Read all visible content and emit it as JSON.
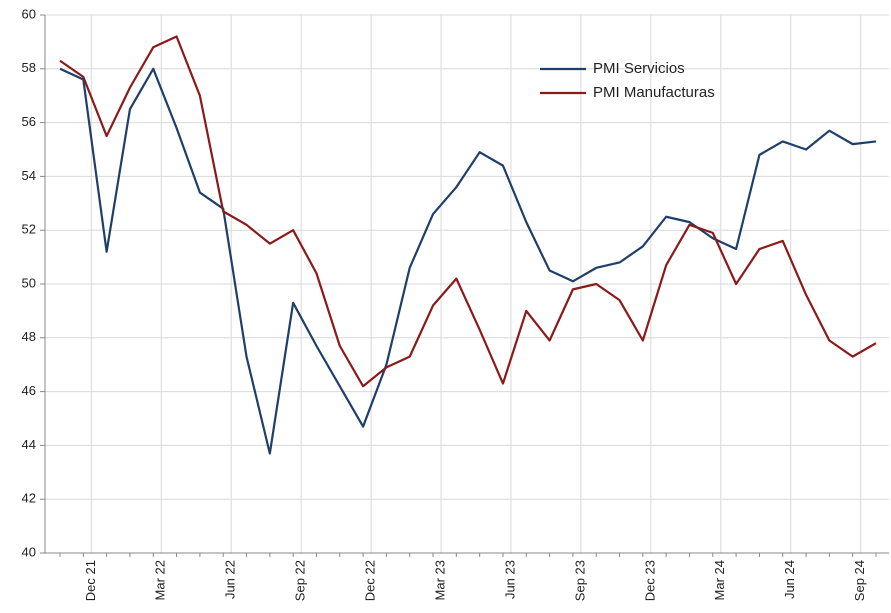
{
  "chart_data": {
    "type": "line",
    "categories": [
      null,
      "Dec 21",
      null,
      null,
      "Mar 22",
      null,
      null,
      "Jun 22",
      null,
      null,
      "Sep 22",
      null,
      null,
      "Dec 22",
      null,
      null,
      "Mar 23",
      null,
      null,
      "Jun 23",
      null,
      null,
      "Sep 23",
      null,
      null,
      "Dec 23",
      null,
      null,
      "Mar 24",
      null,
      null,
      "Jun 24",
      null,
      null,
      "Sep 24",
      null
    ],
    "series": [
      {
        "name": "PMI Servicios",
        "color": "#1f3f6b",
        "values": [
          58.0,
          57.6,
          51.2,
          56.5,
          58.0,
          55.8,
          53.4,
          52.8,
          47.3,
          43.7,
          49.3,
          47.7,
          46.2,
          44.7,
          47.0,
          50.6,
          52.6,
          53.6,
          54.9,
          54.4,
          52.3,
          50.5,
          50.1,
          50.6,
          50.8,
          51.4,
          52.5,
          52.3,
          51.7,
          51.3,
          54.8,
          55.3,
          55.0,
          55.7,
          55.2,
          55.3
        ]
      },
      {
        "name": "PMI Manufacturas",
        "color": "#8b1a1a",
        "values": [
          58.3,
          57.7,
          55.5,
          57.3,
          58.8,
          59.2,
          57.0,
          52.7,
          52.2,
          51.5,
          52.0,
          50.4,
          47.7,
          46.2,
          46.9,
          47.3,
          49.2,
          50.2,
          48.3,
          46.3,
          49.0,
          47.9,
          49.8,
          50.0,
          49.4,
          47.9,
          50.7,
          52.2,
          51.9,
          50.0,
          51.3,
          51.6,
          49.6,
          47.9,
          47.3,
          47.8
        ]
      }
    ],
    "ylim": [
      40,
      60
    ],
    "yticks": [
      40,
      42,
      44,
      46,
      48,
      50,
      52,
      54,
      56,
      58,
      60
    ],
    "grid": true,
    "legend": "upper right"
  }
}
